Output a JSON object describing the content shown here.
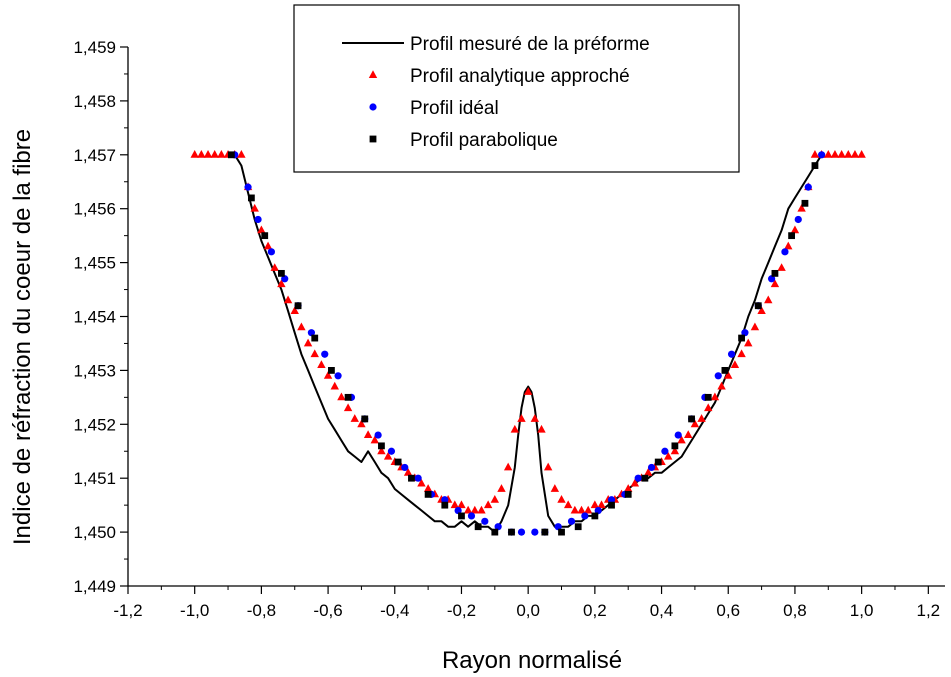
{
  "chart_data": {
    "type": "scatter",
    "xlabel": "Rayon normalisé",
    "ylabel": "Indice de réfraction du coeur de la fibre",
    "xlim": [
      -1.2,
      1.25
    ],
    "ylim": [
      1.449,
      1.459
    ],
    "x_ticks": [
      "-1,2",
      "-1,0",
      "-0,8",
      "-0,6",
      "-0,4",
      "-0,2",
      "0,0",
      "0,2",
      "0,4",
      "0,6",
      "0,8",
      "1,0",
      "1,2"
    ],
    "x_tick_values": [
      -1.2,
      -1.0,
      -0.8,
      -0.6,
      -0.4,
      -0.2,
      0.0,
      0.2,
      0.4,
      0.6,
      0.8,
      1.0,
      1.2
    ],
    "y_ticks": [
      "1,449",
      "1,450",
      "1,451",
      "1,452",
      "1,453",
      "1,454",
      "1,455",
      "1,456",
      "1,457",
      "1,458",
      "1,459"
    ],
    "y_tick_values": [
      1.449,
      1.45,
      1.451,
      1.452,
      1.453,
      1.454,
      1.455,
      1.456,
      1.457,
      1.458,
      1.459
    ],
    "legend_position": "top-center",
    "series": [
      {
        "name": "Profil mesuré de la préforme",
        "style": "line",
        "color": "#000000",
        "points": [
          [
            -0.88,
            1.457
          ],
          [
            -0.86,
            1.4568
          ],
          [
            -0.84,
            1.4563
          ],
          [
            -0.82,
            1.4558
          ],
          [
            -0.8,
            1.4554
          ],
          [
            -0.78,
            1.4551
          ],
          [
            -0.76,
            1.4548
          ],
          [
            -0.74,
            1.4545
          ],
          [
            -0.72,
            1.4541
          ],
          [
            -0.7,
            1.4537
          ],
          [
            -0.68,
            1.4533
          ],
          [
            -0.66,
            1.453
          ],
          [
            -0.64,
            1.4527
          ],
          [
            -0.62,
            1.4524
          ],
          [
            -0.6,
            1.4521
          ],
          [
            -0.58,
            1.4519
          ],
          [
            -0.56,
            1.4517
          ],
          [
            -0.54,
            1.4515
          ],
          [
            -0.52,
            1.4514
          ],
          [
            -0.5,
            1.4513
          ],
          [
            -0.48,
            1.4515
          ],
          [
            -0.46,
            1.4513
          ],
          [
            -0.44,
            1.4511
          ],
          [
            -0.42,
            1.451
          ],
          [
            -0.4,
            1.4508
          ],
          [
            -0.38,
            1.4507
          ],
          [
            -0.36,
            1.4506
          ],
          [
            -0.34,
            1.4505
          ],
          [
            -0.32,
            1.4504
          ],
          [
            -0.3,
            1.4503
          ],
          [
            -0.28,
            1.4502
          ],
          [
            -0.26,
            1.4502
          ],
          [
            -0.24,
            1.4501
          ],
          [
            -0.22,
            1.4501
          ],
          [
            -0.2,
            1.4502
          ],
          [
            -0.18,
            1.4501
          ],
          [
            -0.16,
            1.4502
          ],
          [
            -0.14,
            1.4501
          ],
          [
            -0.12,
            1.4501
          ],
          [
            -0.1,
            1.45
          ],
          [
            -0.08,
            1.4502
          ],
          [
            -0.06,
            1.4505
          ],
          [
            -0.04,
            1.4512
          ],
          [
            -0.03,
            1.4518
          ],
          [
            -0.02,
            1.4523
          ],
          [
            -0.01,
            1.4526
          ],
          [
            0.0,
            1.4527
          ],
          [
            0.01,
            1.4526
          ],
          [
            0.02,
            1.4523
          ],
          [
            0.03,
            1.4518
          ],
          [
            0.04,
            1.4511
          ],
          [
            0.06,
            1.4503
          ],
          [
            0.08,
            1.4501
          ],
          [
            0.1,
            1.4501
          ],
          [
            0.12,
            1.4501
          ],
          [
            0.14,
            1.4502
          ],
          [
            0.16,
            1.4502
          ],
          [
            0.18,
            1.4503
          ],
          [
            0.2,
            1.4503
          ],
          [
            0.22,
            1.4504
          ],
          [
            0.24,
            1.4505
          ],
          [
            0.26,
            1.4506
          ],
          [
            0.28,
            1.4507
          ],
          [
            0.3,
            1.4508
          ],
          [
            0.32,
            1.4509
          ],
          [
            0.34,
            1.451
          ],
          [
            0.36,
            1.451
          ],
          [
            0.38,
            1.4511
          ],
          [
            0.4,
            1.4511
          ],
          [
            0.42,
            1.4512
          ],
          [
            0.44,
            1.4513
          ],
          [
            0.46,
            1.4514
          ],
          [
            0.48,
            1.4516
          ],
          [
            0.5,
            1.4518
          ],
          [
            0.52,
            1.452
          ],
          [
            0.54,
            1.4522
          ],
          [
            0.56,
            1.4524
          ],
          [
            0.58,
            1.4527
          ],
          [
            0.6,
            1.453
          ],
          [
            0.62,
            1.4533
          ],
          [
            0.64,
            1.4536
          ],
          [
            0.66,
            1.454
          ],
          [
            0.68,
            1.4543
          ],
          [
            0.7,
            1.4547
          ],
          [
            0.72,
            1.455
          ],
          [
            0.74,
            1.4553
          ],
          [
            0.76,
            1.4556
          ],
          [
            0.78,
            1.456
          ],
          [
            0.8,
            1.4562
          ],
          [
            0.82,
            1.4564
          ],
          [
            0.84,
            1.4566
          ],
          [
            0.86,
            1.4568
          ],
          [
            0.88,
            1.457
          ]
        ]
      },
      {
        "name": "Profil analytique approché",
        "style": "triangle",
        "color": "#ff0000",
        "points": [
          [
            -1.0,
            1.457
          ],
          [
            -0.98,
            1.457
          ],
          [
            -0.96,
            1.457
          ],
          [
            -0.94,
            1.457
          ],
          [
            -0.92,
            1.457
          ],
          [
            -0.9,
            1.457
          ],
          [
            -0.88,
            1.457
          ],
          [
            -0.86,
            1.457
          ],
          [
            -0.84,
            1.4564
          ],
          [
            -0.82,
            1.456
          ],
          [
            -0.8,
            1.4556
          ],
          [
            -0.78,
            1.4553
          ],
          [
            -0.76,
            1.4549
          ],
          [
            -0.74,
            1.4546
          ],
          [
            -0.72,
            1.4543
          ],
          [
            -0.7,
            1.4541
          ],
          [
            -0.68,
            1.4538
          ],
          [
            -0.66,
            1.4535
          ],
          [
            -0.64,
            1.4533
          ],
          [
            -0.62,
            1.4531
          ],
          [
            -0.6,
            1.4529
          ],
          [
            -0.58,
            1.4527
          ],
          [
            -0.56,
            1.4525
          ],
          [
            -0.54,
            1.4523
          ],
          [
            -0.52,
            1.4521
          ],
          [
            -0.5,
            1.452
          ],
          [
            -0.48,
            1.4518
          ],
          [
            -0.46,
            1.4517
          ],
          [
            -0.44,
            1.4515
          ],
          [
            -0.42,
            1.4514
          ],
          [
            -0.4,
            1.4513
          ],
          [
            -0.38,
            1.4512
          ],
          [
            -0.36,
            1.4511
          ],
          [
            -0.34,
            1.451
          ],
          [
            -0.32,
            1.4509
          ],
          [
            -0.3,
            1.4508
          ],
          [
            -0.28,
            1.4507
          ],
          [
            -0.26,
            1.4506
          ],
          [
            -0.24,
            1.4506
          ],
          [
            -0.22,
            1.4505
          ],
          [
            -0.2,
            1.4505
          ],
          [
            -0.18,
            1.4504
          ],
          [
            -0.16,
            1.4504
          ],
          [
            -0.14,
            1.4504
          ],
          [
            -0.12,
            1.4505
          ],
          [
            -0.1,
            1.4506
          ],
          [
            -0.08,
            1.4508
          ],
          [
            -0.06,
            1.4512
          ],
          [
            -0.04,
            1.4519
          ],
          [
            -0.02,
            1.4521
          ],
          [
            0.0,
            1.4526
          ],
          [
            0.02,
            1.4521
          ],
          [
            0.04,
            1.4519
          ],
          [
            0.06,
            1.4512
          ],
          [
            0.08,
            1.4508
          ],
          [
            0.1,
            1.4506
          ],
          [
            0.12,
            1.4505
          ],
          [
            0.14,
            1.4504
          ],
          [
            0.16,
            1.4504
          ],
          [
            0.18,
            1.4504
          ],
          [
            0.2,
            1.4505
          ],
          [
            0.22,
            1.4505
          ],
          [
            0.24,
            1.4506
          ],
          [
            0.26,
            1.4506
          ],
          [
            0.28,
            1.4507
          ],
          [
            0.3,
            1.4508
          ],
          [
            0.32,
            1.4509
          ],
          [
            0.34,
            1.451
          ],
          [
            0.36,
            1.4511
          ],
          [
            0.38,
            1.4512
          ],
          [
            0.4,
            1.4513
          ],
          [
            0.42,
            1.4514
          ],
          [
            0.44,
            1.4515
          ],
          [
            0.46,
            1.4517
          ],
          [
            0.48,
            1.4518
          ],
          [
            0.5,
            1.452
          ],
          [
            0.52,
            1.4521
          ],
          [
            0.54,
            1.4523
          ],
          [
            0.56,
            1.4525
          ],
          [
            0.58,
            1.4527
          ],
          [
            0.6,
            1.4529
          ],
          [
            0.62,
            1.4531
          ],
          [
            0.64,
            1.4533
          ],
          [
            0.66,
            1.4535
          ],
          [
            0.68,
            1.4538
          ],
          [
            0.7,
            1.4541
          ],
          [
            0.72,
            1.4543
          ],
          [
            0.74,
            1.4546
          ],
          [
            0.76,
            1.4549
          ],
          [
            0.78,
            1.4553
          ],
          [
            0.8,
            1.4556
          ],
          [
            0.82,
            1.456
          ],
          [
            0.84,
            1.4564
          ],
          [
            0.86,
            1.457
          ],
          [
            0.88,
            1.457
          ],
          [
            0.9,
            1.457
          ],
          [
            0.92,
            1.457
          ],
          [
            0.94,
            1.457
          ],
          [
            0.96,
            1.457
          ],
          [
            0.98,
            1.457
          ],
          [
            1.0,
            1.457
          ]
        ]
      },
      {
        "name": "Profil idéal",
        "style": "circle",
        "color": "#0000ff",
        "points": [
          [
            -0.88,
            1.457
          ],
          [
            -0.84,
            1.4564
          ],
          [
            -0.81,
            1.4558
          ],
          [
            -0.77,
            1.4552
          ],
          [
            -0.73,
            1.4547
          ],
          [
            -0.69,
            1.4542
          ],
          [
            -0.65,
            1.4537
          ],
          [
            -0.61,
            1.4533
          ],
          [
            -0.57,
            1.4529
          ],
          [
            -0.53,
            1.4525
          ],
          [
            -0.49,
            1.4521
          ],
          [
            -0.45,
            1.4518
          ],
          [
            -0.41,
            1.4515
          ],
          [
            -0.37,
            1.4512
          ],
          [
            -0.33,
            1.451
          ],
          [
            -0.29,
            1.4507
          ],
          [
            -0.25,
            1.4506
          ],
          [
            -0.21,
            1.4504
          ],
          [
            -0.17,
            1.4503
          ],
          [
            -0.13,
            1.4502
          ],
          [
            -0.09,
            1.4501
          ],
          [
            -0.05,
            1.45
          ],
          [
            -0.02,
            1.45
          ],
          [
            0.02,
            1.45
          ],
          [
            0.05,
            1.45
          ],
          [
            0.09,
            1.4501
          ],
          [
            0.13,
            1.4502
          ],
          [
            0.17,
            1.4503
          ],
          [
            0.21,
            1.4504
          ],
          [
            0.25,
            1.4506
          ],
          [
            0.29,
            1.4507
          ],
          [
            0.33,
            1.451
          ],
          [
            0.37,
            1.4512
          ],
          [
            0.41,
            1.4515
          ],
          [
            0.45,
            1.4518
          ],
          [
            0.49,
            1.4521
          ],
          [
            0.53,
            1.4525
          ],
          [
            0.57,
            1.4529
          ],
          [
            0.61,
            1.4533
          ],
          [
            0.65,
            1.4537
          ],
          [
            0.69,
            1.4542
          ],
          [
            0.73,
            1.4547
          ],
          [
            0.77,
            1.4552
          ],
          [
            0.81,
            1.4558
          ],
          [
            0.84,
            1.4564
          ],
          [
            0.88,
            1.457
          ]
        ]
      },
      {
        "name": "Profil parabolique",
        "style": "square",
        "color": "#000000",
        "points": [
          [
            -0.89,
            1.457
          ],
          [
            -0.83,
            1.4562
          ],
          [
            -0.79,
            1.4555
          ],
          [
            -0.74,
            1.4548
          ],
          [
            -0.69,
            1.4542
          ],
          [
            -0.64,
            1.4536
          ],
          [
            -0.59,
            1.453
          ],
          [
            -0.54,
            1.4525
          ],
          [
            -0.49,
            1.4521
          ],
          [
            -0.44,
            1.4516
          ],
          [
            -0.39,
            1.4513
          ],
          [
            -0.35,
            1.451
          ],
          [
            -0.3,
            1.4507
          ],
          [
            -0.25,
            1.4505
          ],
          [
            -0.2,
            1.4503
          ],
          [
            -0.15,
            1.4501
          ],
          [
            -0.1,
            1.45
          ],
          [
            -0.05,
            1.45
          ],
          [
            0.05,
            1.45
          ],
          [
            0.1,
            1.45
          ],
          [
            0.15,
            1.4501
          ],
          [
            0.2,
            1.4503
          ],
          [
            0.25,
            1.4505
          ],
          [
            0.3,
            1.4507
          ],
          [
            0.35,
            1.451
          ],
          [
            0.39,
            1.4513
          ],
          [
            0.44,
            1.4516
          ],
          [
            0.49,
            1.4521
          ],
          [
            0.54,
            1.4525
          ],
          [
            0.59,
            1.453
          ],
          [
            0.64,
            1.4536
          ],
          [
            0.69,
            1.4542
          ],
          [
            0.74,
            1.4548
          ],
          [
            0.79,
            1.4555
          ],
          [
            0.83,
            1.4561
          ],
          [
            0.86,
            1.4568
          ]
        ]
      }
    ]
  }
}
